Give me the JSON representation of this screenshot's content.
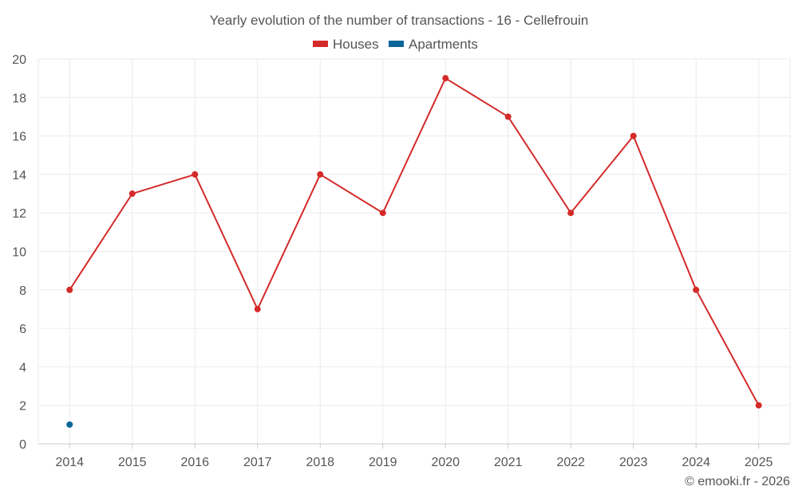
{
  "chart_data": {
    "type": "line",
    "title": "Yearly evolution of the number of transactions - 16 - Cellefrouin",
    "categories": [
      "2014",
      "2015",
      "2016",
      "2017",
      "2018",
      "2019",
      "2020",
      "2021",
      "2022",
      "2023",
      "2024",
      "2025"
    ],
    "series": [
      {
        "name": "Houses",
        "color": "#d42a2a",
        "values": [
          8,
          13,
          14,
          7,
          14,
          12,
          19,
          17,
          12,
          16,
          8,
          2
        ]
      },
      {
        "name": "Apartments",
        "color": "#0b6699",
        "values": [
          1,
          null,
          null,
          null,
          null,
          null,
          null,
          null,
          null,
          null,
          null,
          null
        ]
      }
    ],
    "ylim": [
      0,
      20
    ],
    "yticks": [
      0,
      2,
      4,
      6,
      8,
      10,
      12,
      14,
      16,
      18,
      20
    ],
    "grid": true,
    "legend_position": "top-center"
  },
  "credit": "© emooki.fr - 2026"
}
